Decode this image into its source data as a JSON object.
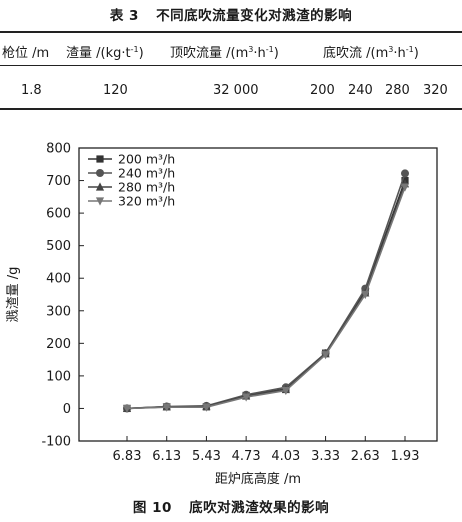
{
  "table": {
    "number": "表 3",
    "title": "不同底吹流量变化对溅渣的影响",
    "headers": {
      "lance": "枪位 /m",
      "slag_prefix": "渣量 /(kg·t",
      "slag_sup": "-1",
      "slag_suffix": ")",
      "top_prefix": "顶吹流量 /(m",
      "top_sup1": "3",
      "top_mid": "·h",
      "top_sup2": "-1",
      "top_suffix": ")",
      "bottom_prefix": "底吹流 /(m",
      "bottom_sup1": "3",
      "bottom_mid": "·h",
      "bottom_sup2": "-1",
      "bottom_suffix": ")"
    },
    "row": {
      "lance": "1.8",
      "slag": "120",
      "top_flow": "32 000",
      "bottom_values": [
        "200",
        "240",
        "280",
        "320"
      ]
    }
  },
  "figure": {
    "number": "图 10",
    "title": "底吹对溅渣效果的影响"
  },
  "chart_data": {
    "type": "line",
    "categories": [
      "6.83",
      "6.13",
      "5.43",
      "4.73",
      "4.03",
      "3.33",
      "2.63",
      "1.93"
    ],
    "xlabel": "距炉底高度 /m",
    "ylabel": "溅渣量 /g",
    "ylim": [
      -100,
      800
    ],
    "yticks": [
      -100,
      0,
      100,
      200,
      300,
      400,
      500,
      600,
      700,
      800
    ],
    "legend_position": "top-left",
    "grid": false,
    "series": [
      {
        "name": "200 m³/h",
        "marker": "square",
        "color": "#333333",
        "values": [
          0,
          5,
          5,
          40,
          60,
          170,
          360,
          700
        ]
      },
      {
        "name": "240 m³/h",
        "marker": "circle",
        "color": "#555555",
        "values": [
          0,
          6,
          8,
          42,
          65,
          170,
          368,
          722
        ]
      },
      {
        "name": "280 m³/h",
        "marker": "triangle-up",
        "color": "#444444",
        "values": [
          0,
          5,
          6,
          38,
          58,
          168,
          355,
          690
        ]
      },
      {
        "name": "320 m³/h",
        "marker": "triangle-down",
        "color": "#777777",
        "values": [
          0,
          4,
          4,
          35,
          55,
          165,
          350,
          680
        ]
      }
    ]
  }
}
